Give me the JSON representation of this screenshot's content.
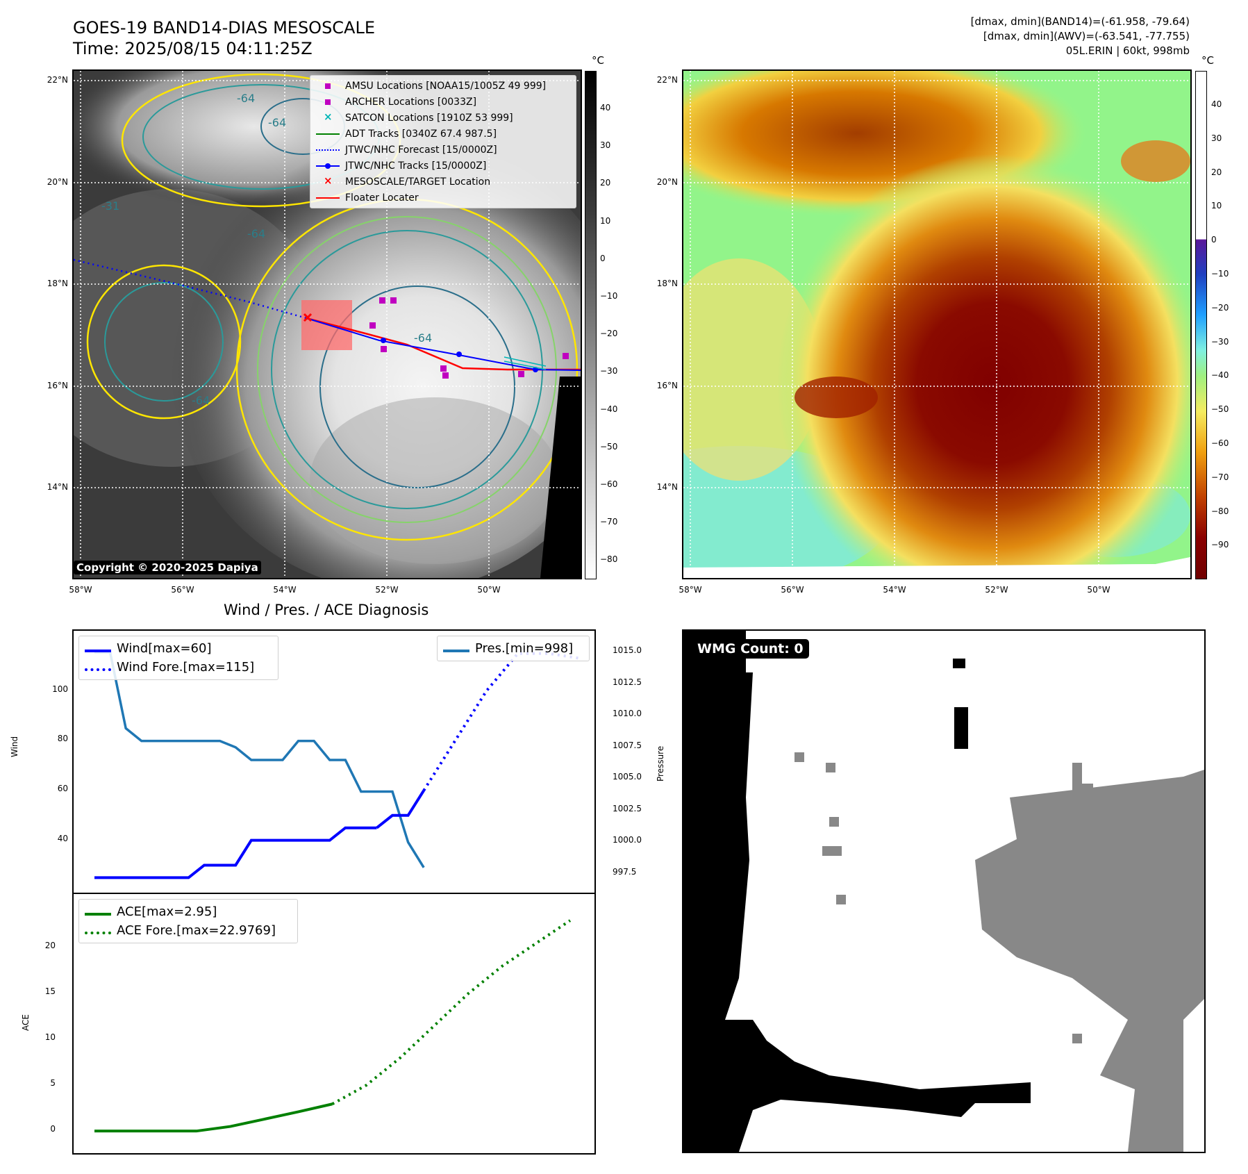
{
  "header": {
    "title_line1": "GOES-19 BAND14-DIAS MESOSCALE",
    "title_line2": "Time: 2025/08/15 04:11:25Z",
    "info_line1": "[dmax, dmin](BAND14)=(-61.958, -79.64)",
    "info_line2": "[dmax, dmin](AWV)=(-63.541, -77.755)",
    "info_line3": "05L.ERIN | 60kt, 998mb"
  },
  "map": {
    "lat_labels": [
      "22°N",
      "20°N",
      "18°N",
      "16°N",
      "14°N"
    ],
    "lon_labels": [
      "58°W",
      "56°W",
      "54°W",
      "52°W",
      "50°W"
    ],
    "copyright": "Copyright © 2020-2025 Dapiya",
    "contour_labels": [
      "-64",
      "-64",
      "-31",
      "-64",
      "-64",
      "-64"
    ],
    "colorbar_unit": "°C",
    "gray_colorbar_ticks": [
      "40",
      "30",
      "20",
      "10",
      "0",
      "−10",
      "−20",
      "−30",
      "−40",
      "−50",
      "−60",
      "−70",
      "−80"
    ],
    "color_colorbar_ticks": [
      "40",
      "30",
      "20",
      "10",
      "0",
      "−10",
      "−20",
      "−30",
      "−40",
      "−50",
      "−60",
      "−70",
      "−80",
      "−90"
    ],
    "legend": [
      {
        "label": "AMSU Locations [NOAA15/1005Z 49 999]",
        "color": "#c000c0",
        "marker": "square"
      },
      {
        "label": "ARCHER Locations [0033Z]",
        "color": "#c000c0",
        "marker": "square"
      },
      {
        "label": "SATCON Locations [1910Z 53 999]",
        "color": "#00b5b5",
        "marker": "x"
      },
      {
        "label": "ADT Tracks [0340Z 67.4 987.5]",
        "color": "#008000",
        "marker": "line"
      },
      {
        "label": "JTWC/NHC Forecast [15/0000Z]",
        "color": "#0000ff",
        "marker": "dotted"
      },
      {
        "label": "JTWC/NHC Tracks [15/0000Z]",
        "color": "#0000ff",
        "marker": "line-dot"
      },
      {
        "label": "MESOSCALE/TARGET Location",
        "color": "#ff0000",
        "marker": "x"
      },
      {
        "label": "Floater Locater",
        "color": "#ff0000",
        "marker": "line"
      }
    ],
    "colors": {
      "amsu": "#c000c0",
      "satcon": "#00b5b5",
      "adt": "#008000",
      "jtwc": "#0000ff",
      "target": "#ff0000"
    }
  },
  "diagnosis": {
    "title": "Wind / Pres. / ACE Diagnosis",
    "wind_ylabel": "Wind",
    "pres_ylabel": "Pressure",
    "ace_ylabel": "ACE",
    "wind_ticks": [
      "100",
      "80",
      "60",
      "40"
    ],
    "pres_ticks": [
      "1015.0",
      "1012.5",
      "1010.0",
      "1007.5",
      "1005.0",
      "1002.5",
      "1000.0",
      "997.5"
    ],
    "ace_ticks": [
      "20",
      "15",
      "10",
      "5",
      "0"
    ],
    "legend_wind": "Wind[max=60]",
    "legend_wind_fore": "Wind Fore.[max=115]",
    "legend_pres": "Pres.[min=998]",
    "legend_ace": "ACE[max=2.95]",
    "legend_ace_fore": "ACE Fore.[max=22.9769]"
  },
  "wmg": {
    "label": "WMG Count: 0"
  },
  "chart_data": [
    {
      "type": "line",
      "title": "Wind / Pres. / ACE Diagnosis",
      "ylabel": "Wind",
      "ylim": [
        24,
        118
      ],
      "x": [
        0,
        1,
        2,
        3,
        4,
        5,
        6,
        7,
        8,
        9,
        10,
        11,
        12,
        13,
        14,
        15,
        16,
        17,
        18,
        19,
        20,
        21,
        22,
        23,
        24,
        25,
        26
      ],
      "series": [
        {
          "name": "Wind[max=60]",
          "color": "#0000ff",
          "style": "solid",
          "x": [
            0,
            1,
            2,
            3,
            4,
            5,
            6,
            7,
            8,
            9,
            10,
            11,
            12,
            13,
            14,
            15,
            16,
            17,
            18
          ],
          "values": [
            25,
            25,
            25,
            25,
            25,
            25,
            25,
            30,
            30,
            30,
            40,
            40,
            40,
            40,
            40,
            40,
            45,
            45,
            45
          ]
        },
        {
          "name": "Wind[max=60]",
          "color": "#0000ff",
          "style": "solid",
          "x": [
            18,
            19,
            20,
            21
          ],
          "values": [
            45,
            50,
            50,
            60
          ]
        },
        {
          "name": "Wind Fore.[max=115]",
          "color": "#0000ff",
          "style": "dotted",
          "x": [
            21,
            23,
            25,
            27,
            29,
            31
          ],
          "values": [
            60,
            80,
            100,
            115,
            115,
            113
          ]
        }
      ]
    },
    {
      "type": "line",
      "ylabel": "Pressure",
      "ylim": [
        997.0,
        1015.5
      ],
      "series": [
        {
          "name": "Pres.[min=998]",
          "color": "#1f77b4",
          "style": "solid",
          "x": [
            0,
            1,
            2,
            3,
            4,
            5,
            6,
            7,
            8,
            9,
            10,
            11,
            12,
            13,
            14,
            15,
            16,
            17,
            18,
            19,
            20,
            21
          ],
          "values": [
            1015,
            1015,
            1009,
            1008,
            1008,
            1008,
            1008,
            1008,
            1008,
            1007.5,
            1006.5,
            1006.5,
            1006.5,
            1008,
            1008,
            1006.5,
            1006.5,
            1004,
            1004,
            1004,
            1000,
            998
          ]
        }
      ]
    },
    {
      "type": "line",
      "ylabel": "ACE",
      "ylim": [
        -1.2,
        24.5
      ],
      "series": [
        {
          "name": "ACE[max=2.95]",
          "color": "#008000",
          "style": "solid",
          "x": [
            0,
            3,
            6,
            9,
            12,
            15,
            18,
            21
          ],
          "values": [
            0,
            0,
            0,
            0,
            0.5,
            1.3,
            2.1,
            2.95
          ]
        },
        {
          "name": "ACE Fore.[max=22.9769]",
          "color": "#008000",
          "style": "dotted",
          "x": [
            21,
            24,
            27,
            30,
            33,
            36,
            39,
            42
          ],
          "values": [
            2.95,
            5,
            8,
            11.5,
            15,
            18,
            20.5,
            22.98
          ]
        }
      ]
    }
  ]
}
